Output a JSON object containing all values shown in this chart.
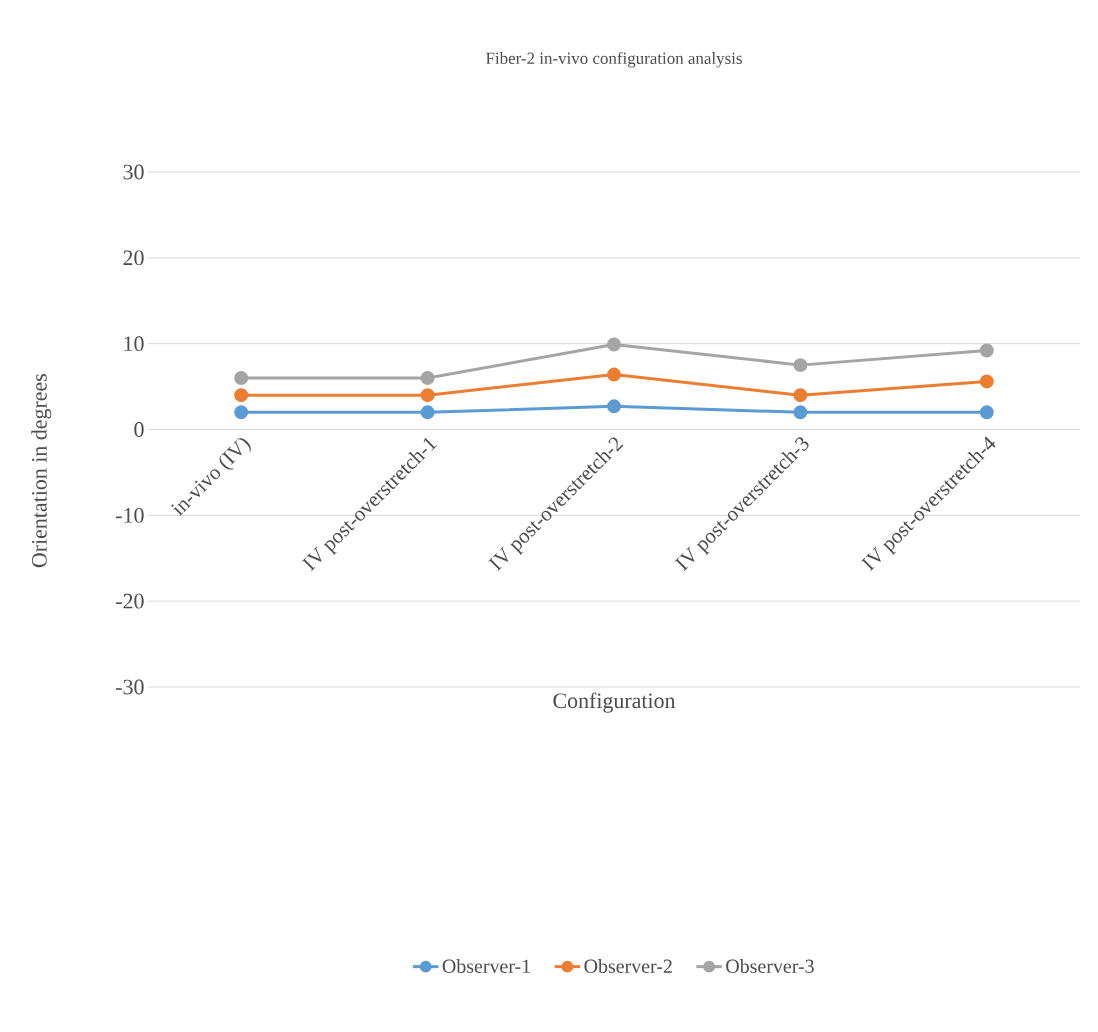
{
  "chart_data": {
    "type": "line",
    "title": "Fiber-2 in-vivo configuration analysis",
    "xlabel": "Configuration",
    "ylabel": "Orientation in degrees",
    "categories": [
      "in-vivo (IV)",
      "IV post-overstretch-1",
      "IV post-overstretch-2",
      "IV post-overstretch-3",
      "IV post-overstretch-4"
    ],
    "series": [
      {
        "name": "Observer-1",
        "color": "#5b9bd5",
        "values": [
          2,
          2,
          2.7,
          2,
          2
        ]
      },
      {
        "name": "Observer-2",
        "color": "#ed7d31",
        "values": [
          4,
          4,
          6.4,
          4,
          5.6
        ]
      },
      {
        "name": "Observer-3",
        "color": "#a5a5a5",
        "values": [
          6,
          6,
          9.9,
          7.5,
          9.2
        ]
      }
    ],
    "ylim": [
      -30,
      30
    ],
    "yticks": [
      -30,
      -20,
      -10,
      0,
      10,
      20,
      30
    ],
    "grid": "y",
    "legend": "bottom",
    "marker": "circle",
    "line_style": "solid"
  }
}
